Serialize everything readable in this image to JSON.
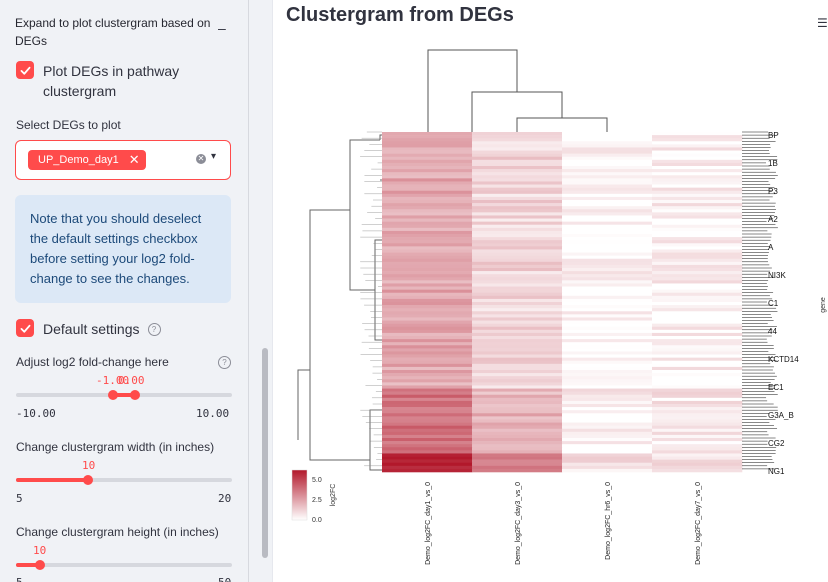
{
  "sidebar": {
    "expander_title": "Expand to plot clustergram based on DEGs",
    "expander_toggle": "–",
    "plot_degs_label": "Plot DEGs in pathway clustergram",
    "select_degs_label": "Select DEGs to plot",
    "selected_tag": "UP_Demo_day1",
    "tag_remove": "✕",
    "clear_icon": "✕",
    "dropdown_icon": "▾",
    "info_text": "Note that you should deselect the default settings checkbox before setting your log2 fold-change to see the changes.",
    "default_settings_label": "Default settings",
    "help_icon": "?",
    "log2fc_label": "Adjust log2 fold-change here",
    "log2fc_low_value": "-1.00",
    "log2fc_high_value": "0.00",
    "log2fc_min": "-10.00",
    "log2fc_max": "10.00",
    "width_label": "Change clustergram width (in inches)",
    "width_value": "10",
    "width_min": "5",
    "width_max": "20",
    "height_label": "Change clustergram height (in inches)",
    "height_value": "10",
    "height_min": "5",
    "height_max": "50"
  },
  "main": {
    "title": "Clustergram from DEGs",
    "menu_icon": "☰"
  },
  "chart_data": {
    "type": "heatmap",
    "title": "",
    "columns": [
      "Demo_log2FC_day1_vs_0",
      "Demo_log2FC_day3_vs_0",
      "Demo_log2FC_hr6_vs_0",
      "Demo_log2FC_day7_vs_0"
    ],
    "y_axis_label": "gene",
    "colorbar_label": "log2FC",
    "colorbar_ticks": [
      "5.0",
      "2.5",
      "0.0"
    ],
    "colorbar_range": [
      0,
      5
    ],
    "colormap": {
      "low": "#ffffff",
      "high": "#b2182b"
    },
    "row_labels_visible": [
      "BP",
      "1B",
      "P3",
      "A2",
      "A",
      "NI3K",
      "C1",
      "44",
      "KCTD14",
      "EC1",
      "G3A_B",
      "CG2",
      "NG1"
    ],
    "column_dendrogram": "day1 separates first; day3 joins cluster of hr6 and day7"
  }
}
